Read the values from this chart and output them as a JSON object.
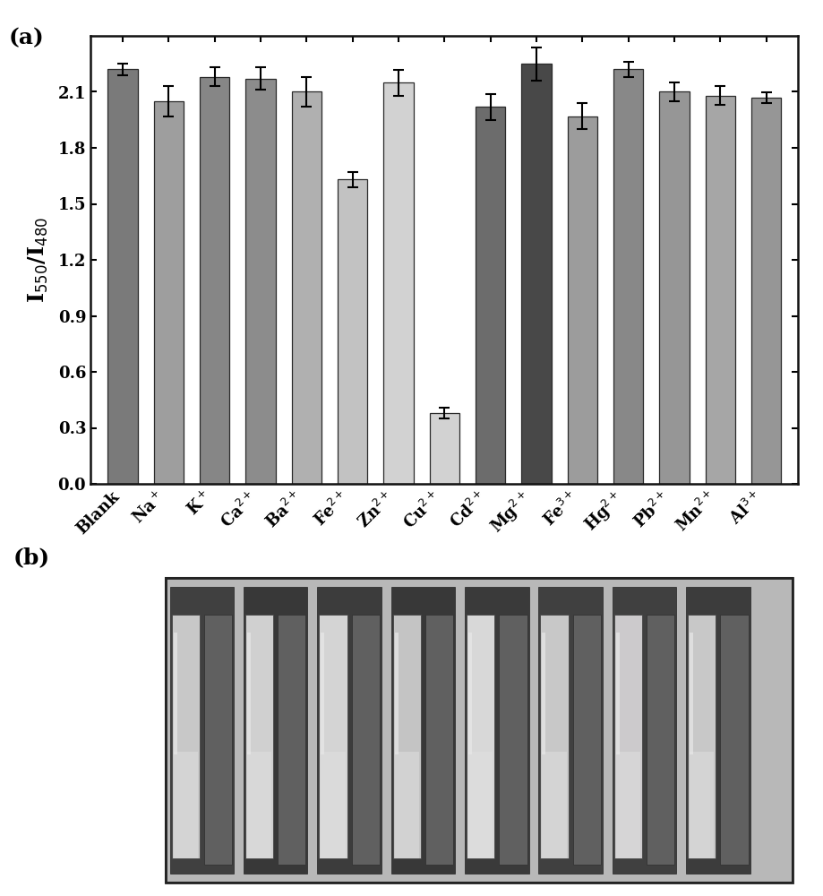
{
  "categories": [
    "Blank",
    "Na$^+$",
    "K$^+$",
    "Ca$^{2+}$",
    "Ba$^{2+}$",
    "Fe$^{2+}$",
    "Zn$^{2+}$",
    "Cu$^{2+}$",
    "Cd$^{2+}$",
    "Mg$^{2+}$",
    "Fe$^{3+}$",
    "Hg$^{2+}$",
    "Pb$^{2+}$",
    "Mn$^{2+}$",
    "Al$^{3+}$"
  ],
  "values": [
    2.22,
    2.05,
    2.18,
    2.17,
    2.1,
    1.63,
    2.15,
    0.38,
    2.02,
    2.25,
    1.97,
    2.22,
    2.1,
    2.08,
    2.07
  ],
  "errors": [
    0.03,
    0.08,
    0.05,
    0.06,
    0.08,
    0.04,
    0.07,
    0.03,
    0.07,
    0.09,
    0.07,
    0.04,
    0.05,
    0.05,
    0.03
  ],
  "bar_colors": [
    "#7a7a7a",
    "#9e9e9e",
    "#868686",
    "#8c8c8c",
    "#b0b0b0",
    "#c2c2c2",
    "#d2d2d2",
    "#d2d2d2",
    "#6c6c6c",
    "#484848",
    "#9c9c9c",
    "#888888",
    "#969696",
    "#a6a6a6",
    "#969696"
  ],
  "ylabel": "I$_{550}$/I$_{480}$",
  "ylim": [
    0.0,
    2.4
  ],
  "yticks": [
    0.0,
    0.3,
    0.6,
    0.9,
    1.2,
    1.5,
    1.8,
    2.1
  ],
  "panel_a_label": "(a)",
  "panel_b_label": "(b)",
  "background_color": "#ffffff",
  "bar_edgecolor": "#2a2a2a",
  "errorbar_color": "#000000"
}
